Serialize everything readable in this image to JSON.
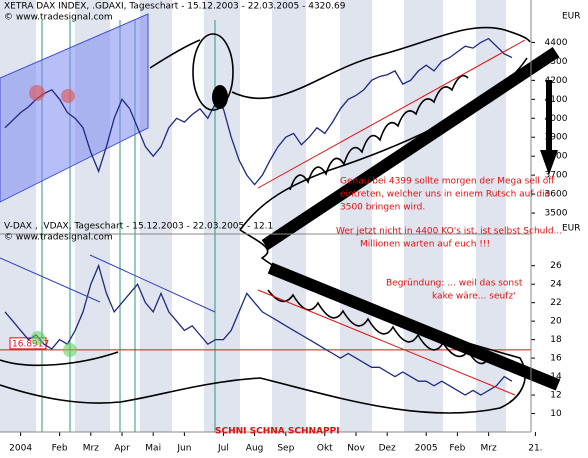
{
  "chart_data": [
    {
      "type": "line",
      "title": "XETRA DAX INDEX, .GDAXI, Tageschart - 15.12.2003 - 22.03.2005 - 4320.69",
      "subtitle": "© www.tradesignal.com",
      "y_unit": "EUR",
      "series": [
        {
          "name": "XETRA DAX INDEX",
          "color": "#1e2a80",
          "values": [
            3950,
            3990,
            4030,
            4060,
            4100,
            4130,
            4150,
            4100,
            4030,
            4000,
            3950,
            3820,
            3720,
            3850,
            4000,
            4100,
            4050,
            3950,
            3850,
            3800,
            3850,
            3950,
            4000,
            3980,
            4020,
            4050,
            4000,
            4080,
            4050,
            3900,
            3780,
            3700,
            3650,
            3700,
            3780,
            3850,
            3900,
            3920,
            3860,
            3900,
            3950,
            3920,
            3980,
            4050,
            4100,
            4120,
            4150,
            4200,
            4220,
            4230,
            4250,
            4180,
            4200,
            4250,
            4280,
            4250,
            4300,
            4320,
            4350,
            4380,
            4370,
            4400,
            4420,
            4380,
            4340,
            4320,
            null,
            null,
            null
          ]
        }
      ],
      "ylim": [
        3400,
        4550
      ],
      "yticks": [
        3500,
        3600,
        3700,
        3800,
        3900,
        4000,
        4100,
        4200,
        4300,
        4400
      ]
    },
    {
      "type": "line",
      "title": "V-DAX , .VDAX, Tageschart - 15.12.2003 - 22.03.2005 - 12.1",
      "subtitle": "© www.tradesignal.com",
      "y_unit": "EUR",
      "categories": [
        null,
        null,
        "2004",
        null,
        null,
        null,
        null,
        "Feb",
        null,
        null,
        null,
        "Mrz",
        null,
        null,
        null,
        "Apr",
        null,
        null,
        null,
        "Mai",
        null,
        null,
        null,
        "Jun",
        null,
        null,
        null,
        null,
        "Jul",
        null,
        null,
        null,
        "Aug",
        null,
        null,
        null,
        "Sep",
        null,
        null,
        null,
        null,
        "Okt",
        null,
        null,
        null,
        "Nov",
        null,
        null,
        null,
        "Dez",
        null,
        null,
        null,
        null,
        "2005",
        null,
        null,
        null,
        "Feb",
        null,
        null,
        null,
        "Mrz",
        null,
        null,
        null,
        null,
        null,
        "21."
      ],
      "series": [
        {
          "name": "V-DAX",
          "color": "#1e2a80",
          "values": [
            21,
            20,
            19,
            18,
            18.5,
            17.5,
            17,
            18,
            17.5,
            19,
            21,
            24,
            26,
            23,
            21,
            22,
            23,
            24,
            22,
            21,
            23,
            21,
            20,
            19,
            19.5,
            18.5,
            17.5,
            18,
            18,
            19,
            21,
            23,
            22,
            21,
            20.5,
            20,
            19.5,
            19,
            18.5,
            18,
            17.5,
            17,
            16.5,
            16,
            16.5,
            16,
            15.5,
            15,
            15,
            14.5,
            14,
            14.5,
            14,
            13.5,
            13.5,
            13,
            13.5,
            13,
            12.5,
            12,
            12.5,
            12,
            12.5,
            13,
            14,
            13.5,
            null,
            null,
            null
          ]
        }
      ],
      "reference_line": 16.8917,
      "ylim": [
        8,
        29
      ],
      "yticks": [
        10,
        12,
        14,
        16,
        18,
        20,
        22,
        24,
        26
      ]
    }
  ],
  "annotations": {
    "comment": [
      "Genau bei 4399 sollte morgen der Mega sell off",
      "eintreten, welcher uns in einem Rutsch auf die",
      "3500 bringen wird.",
      "Wer jetzt nicht in 4400 KO's ist, ist selbst Schuld...",
      "Millionen warten auf euch !!!"
    ],
    "reason": [
      "Begründung: ... weil das sonst",
      "kake wäre... seufz'"
    ],
    "slogan": "SCHNI SCHNA SCHNAPPI"
  }
}
